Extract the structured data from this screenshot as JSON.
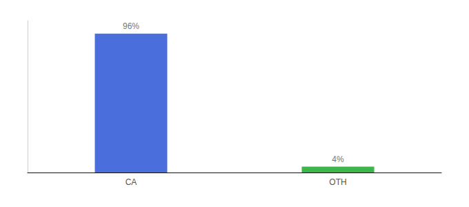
{
  "chart_data": {
    "type": "bar",
    "categories": [
      "CA",
      "OTH"
    ],
    "values": [
      96,
      4
    ],
    "value_labels": [
      "96%",
      "4%"
    ],
    "data_labels": true,
    "colors": [
      "#4a6edb",
      "#3cb54a"
    ],
    "ylim": [
      0,
      105
    ],
    "tick_labels": "x",
    "grid": false
  }
}
